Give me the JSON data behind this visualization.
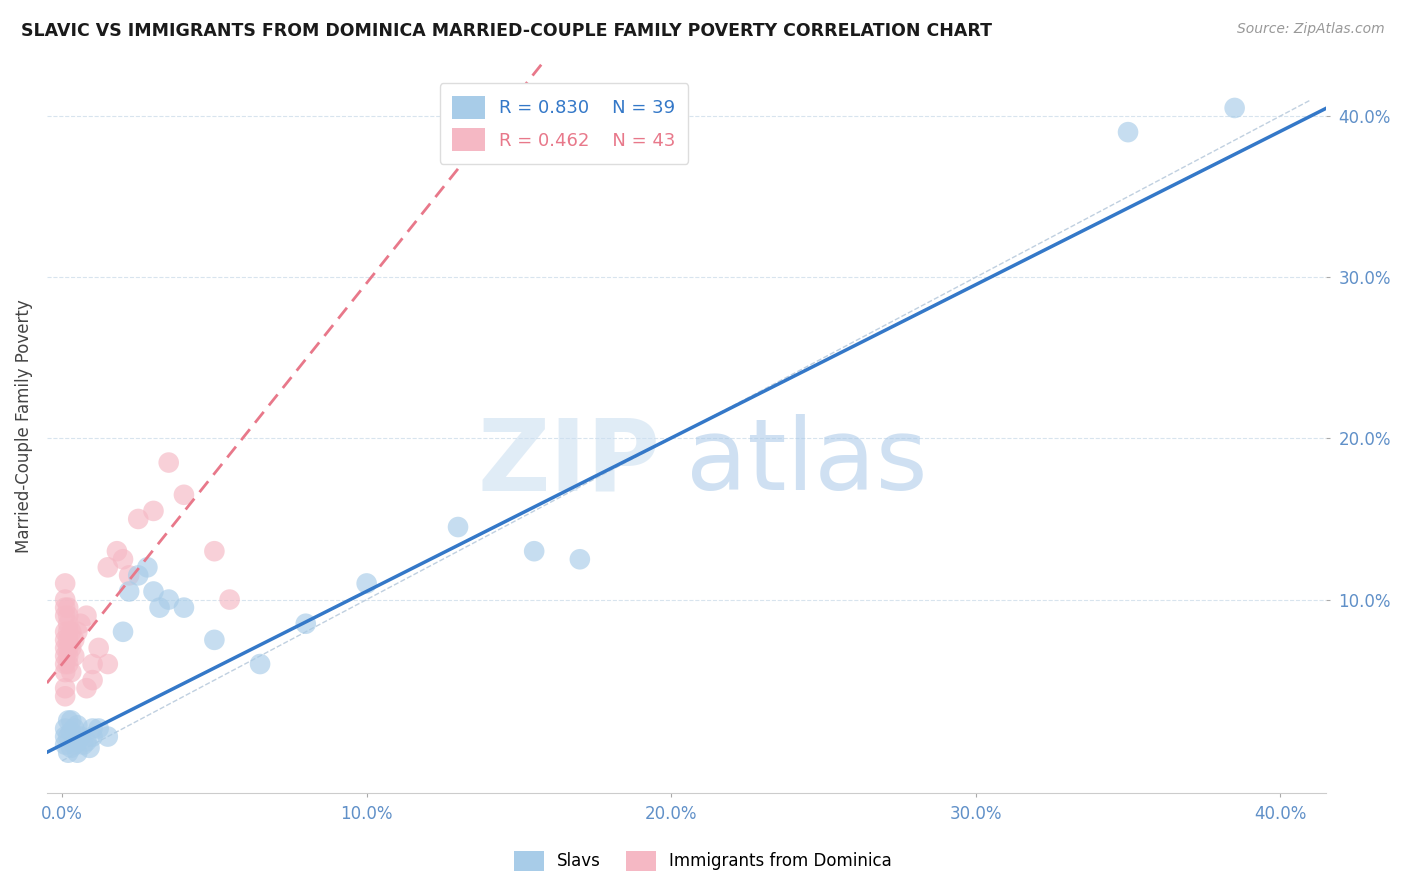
{
  "title": "SLAVIC VS IMMIGRANTS FROM DOMINICA MARRIED-COUPLE FAMILY POVERTY CORRELATION CHART",
  "source": "Source: ZipAtlas.com",
  "ylabel": "Married-Couple Family Poverty",
  "xlim": [
    -0.005,
    0.415
  ],
  "ylim": [
    -0.02,
    0.435
  ],
  "xticks": [
    0.0,
    0.1,
    0.2,
    0.3,
    0.4
  ],
  "yticks": [
    0.1,
    0.2,
    0.3,
    0.4
  ],
  "xtick_labels": [
    "0.0%",
    "10.0%",
    "20.0%",
    "30.0%",
    "40.0%"
  ],
  "ytick_labels": [
    "10.0%",
    "20.0%",
    "30.0%",
    "40.0%"
  ],
  "slavs_color": "#a8cce8",
  "dominica_color": "#f5b8c4",
  "slavs_line_color": "#3478c8",
  "dominica_line_color": "#e8788a",
  "diagonal_color": "#c0d0e0",
  "grid_color": "#d8e4ee",
  "tick_color": "#6090c8",
  "R_slavs": 0.83,
  "N_slavs": 39,
  "R_dominica": 0.462,
  "N_dominica": 43,
  "slavs_x": [
    0.001,
    0.001,
    0.001,
    0.002,
    0.002,
    0.002,
    0.003,
    0.003,
    0.003,
    0.004,
    0.004,
    0.005,
    0.005,
    0.005,
    0.006,
    0.007,
    0.008,
    0.009,
    0.01,
    0.01,
    0.012,
    0.015,
    0.02,
    0.022,
    0.025,
    0.028,
    0.03,
    0.032,
    0.035,
    0.04,
    0.05,
    0.065,
    0.08,
    0.1,
    0.13,
    0.155,
    0.17,
    0.35,
    0.385
  ],
  "slavs_y": [
    0.01,
    0.015,
    0.02,
    0.005,
    0.015,
    0.025,
    0.008,
    0.018,
    0.025,
    0.01,
    0.02,
    0.005,
    0.012,
    0.022,
    0.015,
    0.01,
    0.012,
    0.008,
    0.015,
    0.02,
    0.02,
    0.015,
    0.08,
    0.105,
    0.115,
    0.12,
    0.105,
    0.095,
    0.1,
    0.095,
    0.075,
    0.06,
    0.085,
    0.11,
    0.145,
    0.13,
    0.125,
    0.39,
    0.405
  ],
  "dominica_x": [
    0.001,
    0.001,
    0.001,
    0.001,
    0.001,
    0.001,
    0.001,
    0.001,
    0.001,
    0.001,
    0.001,
    0.001,
    0.002,
    0.002,
    0.002,
    0.002,
    0.002,
    0.002,
    0.002,
    0.002,
    0.003,
    0.003,
    0.003,
    0.004,
    0.004,
    0.005,
    0.006,
    0.008,
    0.01,
    0.012,
    0.015,
    0.018,
    0.02,
    0.022,
    0.025,
    0.03,
    0.035,
    0.04,
    0.05,
    0.055,
    0.015,
    0.01,
    0.008
  ],
  "dominica_y": [
    0.04,
    0.045,
    0.055,
    0.06,
    0.065,
    0.07,
    0.075,
    0.08,
    0.09,
    0.095,
    0.1,
    0.11,
    0.06,
    0.065,
    0.07,
    0.075,
    0.08,
    0.085,
    0.09,
    0.095,
    0.055,
    0.07,
    0.08,
    0.065,
    0.075,
    0.08,
    0.085,
    0.09,
    0.06,
    0.07,
    0.12,
    0.13,
    0.125,
    0.115,
    0.15,
    0.155,
    0.185,
    0.165,
    0.13,
    0.1,
    0.06,
    0.05,
    0.045
  ],
  "watermark_zip": "ZIP",
  "watermark_atlas": "atlas",
  "background_color": "#ffffff",
  "figsize": [
    14.06,
    8.92
  ],
  "dpi": 100
}
